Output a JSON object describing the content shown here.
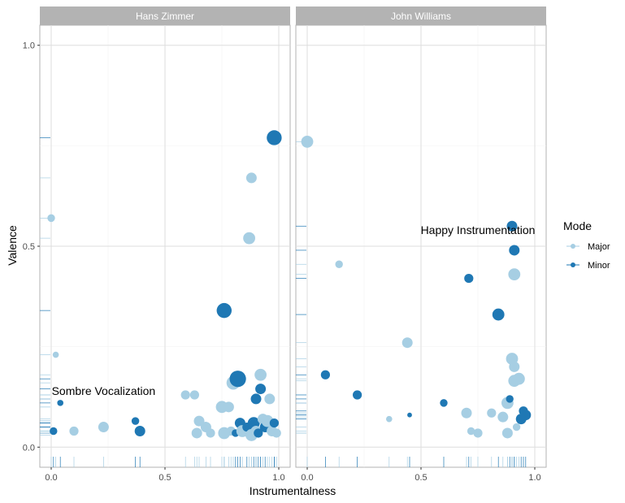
{
  "chart_data": {
    "type": "scatter",
    "xlabel": "Instrumentalness",
    "ylabel": "Valence",
    "xlim": [
      -0.05,
      1.05
    ],
    "ylim": [
      -0.05,
      1.05
    ],
    "x_ticks": [
      "0.0",
      "0.5",
      "1.0"
    ],
    "x_tick_values": [
      0,
      0.5,
      1
    ],
    "y_ticks": [
      "0.0",
      "0.5",
      "1.0"
    ],
    "y_tick_values": [
      0,
      0.5,
      1
    ],
    "grid": true,
    "legend": {
      "title": "Mode",
      "placement": "right",
      "entries": [
        {
          "label": "Major",
          "color": "#a6cee3"
        },
        {
          "label": "Minor",
          "color": "#1f78b4"
        }
      ]
    },
    "facets": [
      {
        "title": "Hans Zimmer",
        "annotation": {
          "text": "Sombre Vocalization",
          "x": 0.23,
          "y": 0.13
        },
        "points": [
          {
            "x": 0.0,
            "y": 0.57,
            "mode": "Major",
            "size": 3
          },
          {
            "x": 0.02,
            "y": 0.23,
            "mode": "Major",
            "size": 2
          },
          {
            "x": 0.01,
            "y": 0.04,
            "mode": "Minor",
            "size": 3
          },
          {
            "x": 0.04,
            "y": 0.11,
            "mode": "Minor",
            "size": 2
          },
          {
            "x": 0.1,
            "y": 0.04,
            "mode": "Major",
            "size": 4
          },
          {
            "x": 0.23,
            "y": 0.05,
            "mode": "Major",
            "size": 5
          },
          {
            "x": 0.37,
            "y": 0.065,
            "mode": "Minor",
            "size": 3
          },
          {
            "x": 0.39,
            "y": 0.04,
            "mode": "Minor",
            "size": 5
          },
          {
            "x": 0.59,
            "y": 0.13,
            "mode": "Major",
            "size": 4
          },
          {
            "x": 0.63,
            "y": 0.13,
            "mode": "Major",
            "size": 4
          },
          {
            "x": 0.64,
            "y": 0.035,
            "mode": "Major",
            "size": 5
          },
          {
            "x": 0.65,
            "y": 0.065,
            "mode": "Major",
            "size": 5
          },
          {
            "x": 0.68,
            "y": 0.05,
            "mode": "Major",
            "size": 5
          },
          {
            "x": 0.7,
            "y": 0.035,
            "mode": "Major",
            "size": 4
          },
          {
            "x": 0.75,
            "y": 0.1,
            "mode": "Major",
            "size": 6
          },
          {
            "x": 0.76,
            "y": 0.34,
            "mode": "Minor",
            "size": 8
          },
          {
            "x": 0.76,
            "y": 0.035,
            "mode": "Major",
            "size": 6
          },
          {
            "x": 0.78,
            "y": 0.1,
            "mode": "Major",
            "size": 5
          },
          {
            "x": 0.79,
            "y": 0.04,
            "mode": "Major",
            "size": 4
          },
          {
            "x": 0.8,
            "y": 0.16,
            "mode": "Major",
            "size": 7
          },
          {
            "x": 0.81,
            "y": 0.035,
            "mode": "Minor",
            "size": 3
          },
          {
            "x": 0.82,
            "y": 0.17,
            "mode": "Minor",
            "size": 9
          },
          {
            "x": 0.83,
            "y": 0.06,
            "mode": "Minor",
            "size": 5
          },
          {
            "x": 0.84,
            "y": 0.04,
            "mode": "Major",
            "size": 6
          },
          {
            "x": 0.86,
            "y": 0.05,
            "mode": "Minor",
            "size": 4
          },
          {
            "x": 0.87,
            "y": 0.52,
            "mode": "Major",
            "size": 6
          },
          {
            "x": 0.88,
            "y": 0.67,
            "mode": "Major",
            "size": 5
          },
          {
            "x": 0.88,
            "y": 0.03,
            "mode": "Major",
            "size": 6
          },
          {
            "x": 0.89,
            "y": 0.06,
            "mode": "Minor",
            "size": 6
          },
          {
            "x": 0.9,
            "y": 0.12,
            "mode": "Minor",
            "size": 5
          },
          {
            "x": 0.9,
            "y": 0.04,
            "mode": "Major",
            "size": 5
          },
          {
            "x": 0.91,
            "y": 0.035,
            "mode": "Minor",
            "size": 4
          },
          {
            "x": 0.92,
            "y": 0.18,
            "mode": "Major",
            "size": 6
          },
          {
            "x": 0.92,
            "y": 0.145,
            "mode": "Minor",
            "size": 5
          },
          {
            "x": 0.93,
            "y": 0.07,
            "mode": "Major",
            "size": 5
          },
          {
            "x": 0.94,
            "y": 0.05,
            "mode": "Minor",
            "size": 5
          },
          {
            "x": 0.95,
            "y": 0.065,
            "mode": "Major",
            "size": 6
          },
          {
            "x": 0.96,
            "y": 0.12,
            "mode": "Major",
            "size": 5
          },
          {
            "x": 0.97,
            "y": 0.04,
            "mode": "Major",
            "size": 5
          },
          {
            "x": 0.98,
            "y": 0.77,
            "mode": "Minor",
            "size": 8
          },
          {
            "x": 0.98,
            "y": 0.06,
            "mode": "Minor",
            "size": 4
          },
          {
            "x": 0.99,
            "y": 0.035,
            "mode": "Major",
            "size": 4
          }
        ]
      },
      {
        "title": "John Williams",
        "annotation": {
          "text": "Happy Instrumentation",
          "x": 0.75,
          "y": 0.53
        },
        "points": [
          {
            "x": 0.0,
            "y": 0.76,
            "mode": "Major",
            "size": 6
          },
          {
            "x": 0.08,
            "y": 0.18,
            "mode": "Minor",
            "size": 4
          },
          {
            "x": 0.14,
            "y": 0.455,
            "mode": "Major",
            "size": 3
          },
          {
            "x": 0.22,
            "y": 0.13,
            "mode": "Minor",
            "size": 4
          },
          {
            "x": 0.36,
            "y": 0.07,
            "mode": "Major",
            "size": 2
          },
          {
            "x": 0.44,
            "y": 0.26,
            "mode": "Major",
            "size": 5
          },
          {
            "x": 0.45,
            "y": 0.08,
            "mode": "Minor",
            "size": 1
          },
          {
            "x": 0.6,
            "y": 0.11,
            "mode": "Minor",
            "size": 3
          },
          {
            "x": 0.7,
            "y": 0.085,
            "mode": "Major",
            "size": 5
          },
          {
            "x": 0.71,
            "y": 0.42,
            "mode": "Minor",
            "size": 4
          },
          {
            "x": 0.72,
            "y": 0.04,
            "mode": "Major",
            "size": 3
          },
          {
            "x": 0.75,
            "y": 0.035,
            "mode": "Major",
            "size": 4
          },
          {
            "x": 0.81,
            "y": 0.085,
            "mode": "Major",
            "size": 4
          },
          {
            "x": 0.84,
            "y": 0.33,
            "mode": "Minor",
            "size": 6
          },
          {
            "x": 0.86,
            "y": 0.075,
            "mode": "Major",
            "size": 5
          },
          {
            "x": 0.88,
            "y": 0.11,
            "mode": "Major",
            "size": 6
          },
          {
            "x": 0.88,
            "y": 0.035,
            "mode": "Major",
            "size": 5
          },
          {
            "x": 0.89,
            "y": 0.12,
            "mode": "Minor",
            "size": 3
          },
          {
            "x": 0.9,
            "y": 0.55,
            "mode": "Minor",
            "size": 5
          },
          {
            "x": 0.9,
            "y": 0.22,
            "mode": "Major",
            "size": 6
          },
          {
            "x": 0.91,
            "y": 0.2,
            "mode": "Major",
            "size": 5
          },
          {
            "x": 0.91,
            "y": 0.43,
            "mode": "Major",
            "size": 6
          },
          {
            "x": 0.91,
            "y": 0.165,
            "mode": "Major",
            "size": 6
          },
          {
            "x": 0.91,
            "y": 0.49,
            "mode": "Minor",
            "size": 5
          },
          {
            "x": 0.92,
            "y": 0.05,
            "mode": "Major",
            "size": 3
          },
          {
            "x": 0.93,
            "y": 0.17,
            "mode": "Major",
            "size": 6
          },
          {
            "x": 0.94,
            "y": 0.07,
            "mode": "Minor",
            "size": 5
          },
          {
            "x": 0.95,
            "y": 0.09,
            "mode": "Minor",
            "size": 4
          },
          {
            "x": 0.96,
            "y": 0.08,
            "mode": "Minor",
            "size": 5
          }
        ]
      }
    ]
  }
}
